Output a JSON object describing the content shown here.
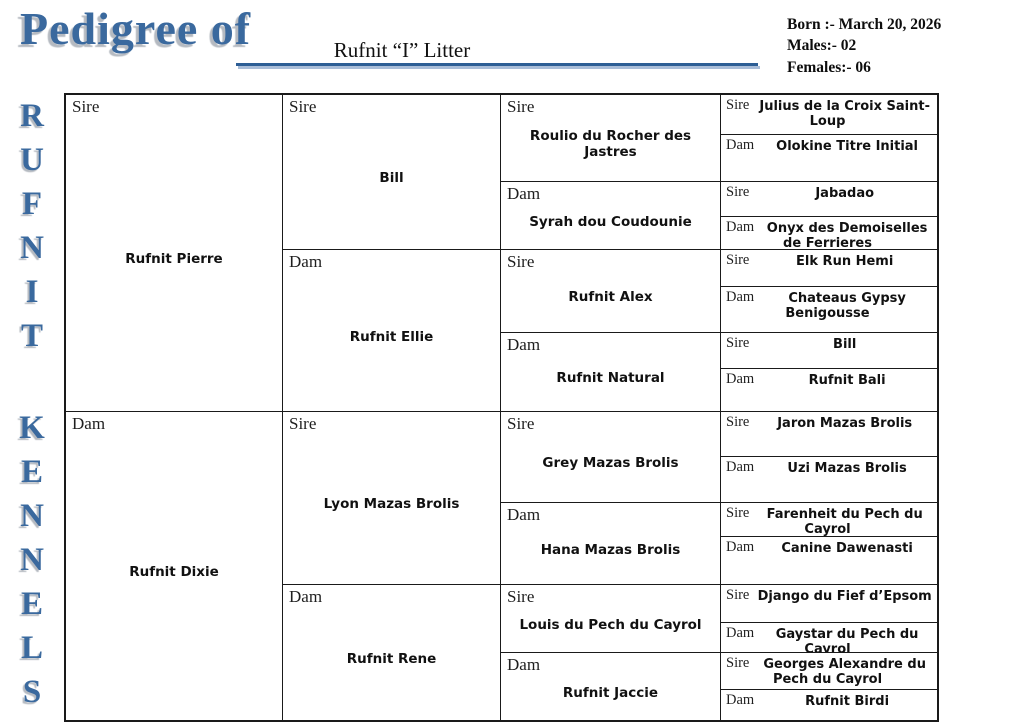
{
  "header": {
    "title": "Pedigree of",
    "litter_name": "Rufnit “I” Litter",
    "info": {
      "born": "Born :- March 20, 2026",
      "males": "Males:- 02",
      "females": "Females:- 06"
    }
  },
  "kennel_name_vertical": [
    "R",
    "U",
    "F",
    "N",
    "I",
    "T",
    "K",
    "E",
    "N",
    "N",
    "E",
    "L",
    "S"
  ],
  "pedigree": {
    "gen1": [
      {
        "role": "Sire",
        "name": "Rufnit Pierre"
      },
      {
        "role": "Dam",
        "name": "Rufnit Dixie"
      }
    ],
    "gen2": [
      {
        "role": "Sire",
        "name": "Bill"
      },
      {
        "role": "Dam",
        "name": "Rufnit Ellie"
      },
      {
        "role": "Sire",
        "name": "Lyon Mazas Brolis"
      },
      {
        "role": "Dam",
        "name": "Rufnit Rene"
      }
    ],
    "gen3": [
      {
        "role": "Sire",
        "name": "Roulio du Rocher des Jastres"
      },
      {
        "role": "Dam",
        "name": "Syrah dou Coudounie"
      },
      {
        "role": "Sire",
        "name": "Rufnit Alex"
      },
      {
        "role": "Dam",
        "name": "Rufnit Natural"
      },
      {
        "role": "Sire",
        "name": "Grey Mazas Brolis"
      },
      {
        "role": "Dam",
        "name": "Hana Mazas Brolis"
      },
      {
        "role": "Sire",
        "name": "Louis du Pech du Cayrol"
      },
      {
        "role": "Dam",
        "name": "Rufnit Jaccie"
      }
    ],
    "gen4": [
      {
        "role": "Sire",
        "name": "Julius de la Croix Saint-Loup"
      },
      {
        "role": "Dam",
        "name": "Olokine Titre Initial"
      },
      {
        "role": "Sire",
        "name": "Jabadao"
      },
      {
        "role": "Dam",
        "name": "Onyx des Demoiselles de Ferrieres"
      },
      {
        "role": "Sire",
        "name": "Elk Run Hemi"
      },
      {
        "role": "Dam",
        "name": "Chateaus Gypsy Benigousse"
      },
      {
        "role": "Sire",
        "name": "Bill"
      },
      {
        "role": "Dam",
        "name": "Rufnit Bali"
      },
      {
        "role": "Sire",
        "name": "Jaron Mazas Brolis"
      },
      {
        "role": "Dam",
        "name": "Uzi Mazas Brolis"
      },
      {
        "role": "Sire",
        "name": "Farenheit du Pech du Cayrol"
      },
      {
        "role": "Dam",
        "name": "Canine Dawenasti"
      },
      {
        "role": "Sire",
        "name": "Django du Fief d’Epsom"
      },
      {
        "role": "Dam",
        "name": "Gaystar du Pech du Cayrol"
      },
      {
        "role": "Sire",
        "name": "Georges Alexandre du Pech du Cayrol"
      },
      {
        "role": "Dam",
        "name": "Rufnit Birdi"
      }
    ]
  },
  "colors": {
    "accent_blue": "#3a699e",
    "underline_blue": "#2d5e95",
    "shadow_gray": "#b5bac1",
    "border_black": "#1a1a1a"
  }
}
